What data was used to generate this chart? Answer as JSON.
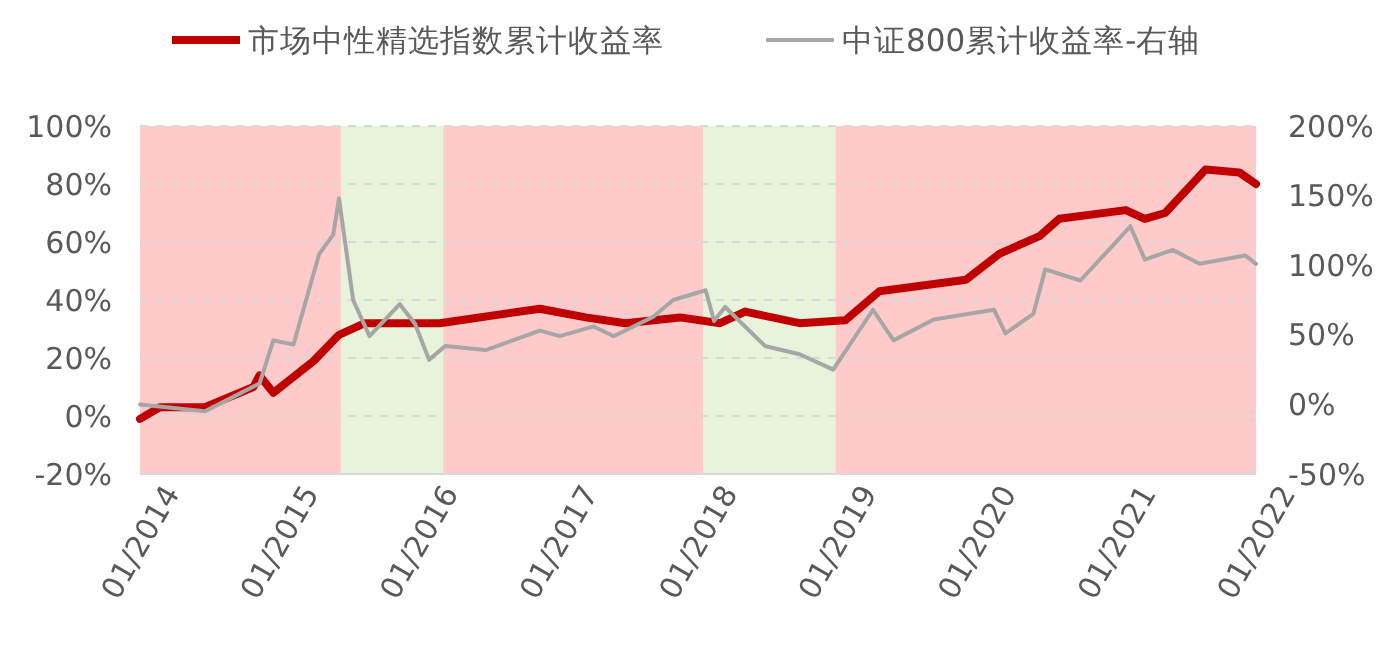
{
  "chart_data": {
    "type": "line",
    "legend": "top",
    "grid": "y",
    "xlim": [
      "2014-01-01",
      "2022-01-01"
    ],
    "xticks": [
      {
        "value": "2014-01-01",
        "label": "01/2014"
      },
      {
        "value": "2015-01-01",
        "label": "01/2015"
      },
      {
        "value": "2016-01-01",
        "label": "01/2016"
      },
      {
        "value": "2017-01-01",
        "label": "01/2017"
      },
      {
        "value": "2018-01-01",
        "label": "01/2018"
      },
      {
        "value": "2019-01-01",
        "label": "01/2019"
      },
      {
        "value": "2020-01-01",
        "label": "01/2020"
      },
      {
        "value": "2021-01-01",
        "label": "01/2021"
      },
      {
        "value": "2022-01-01",
        "label": "01/2022"
      }
    ],
    "ylim": [
      -20,
      100
    ],
    "yticks": [
      {
        "value": -20,
        "label": "-20%"
      },
      {
        "value": 0,
        "label": "0%"
      },
      {
        "value": 20,
        "label": "20%"
      },
      {
        "value": 40,
        "label": "40%"
      },
      {
        "value": 60,
        "label": "60%"
      },
      {
        "value": 80,
        "label": "80%"
      },
      {
        "value": 100,
        "label": "100%"
      }
    ],
    "y2lim": [
      -50,
      200
    ],
    "y2ticks": [
      {
        "value": -50,
        "label": "-50%"
      },
      {
        "value": 0,
        "label": "0%"
      },
      {
        "value": 50,
        "label": "50%"
      },
      {
        "value": 100,
        "label": "100%"
      },
      {
        "value": 150,
        "label": "150%"
      },
      {
        "value": 200,
        "label": "200%"
      }
    ],
    "bands": [
      {
        "axis": "x",
        "from": "2014-01-01",
        "to": "2015-06-12",
        "color": "#ffcaca"
      },
      {
        "axis": "x",
        "from": "2015-06-12",
        "to": "2016-03-05",
        "color": "#e7f3da"
      },
      {
        "axis": "x",
        "from": "2016-03-05",
        "to": "2018-01-15",
        "color": "#ffcaca"
      },
      {
        "axis": "x",
        "from": "2018-01-15",
        "to": "2018-12-27",
        "color": "#e7f3da"
      },
      {
        "axis": "x",
        "from": "2018-12-27",
        "to": "2022-01-01",
        "color": "#ffcaca"
      }
    ],
    "series": [
      {
        "name": "市场中性精选指数累计收益率",
        "color": "#c00000",
        "x": [
          "2014-01-01",
          "2014-02-22",
          "2014-06-20",
          "2014-10-25",
          "2014-11-10",
          "2014-12-16",
          "2015-04-01",
          "2015-06-06",
          "2015-08-13",
          "2016-02-25",
          "2016-11-13",
          "2017-03-13",
          "2017-06-25",
          "2017-11-15",
          "2018-02-28",
          "2018-05-04",
          "2018-09-24",
          "2019-01-22",
          "2019-04-21",
          "2019-12-04",
          "2020-03-01",
          "2020-06-13",
          "2020-08-04",
          "2021-01-25",
          "2021-03-16",
          "2021-05-08",
          "2021-08-22",
          "2021-11-18",
          "2022-01-01"
        ],
        "values": [
          -1,
          3,
          3,
          10,
          14,
          8,
          19,
          28,
          32,
          32,
          37,
          34,
          32,
          34,
          32,
          36,
          32,
          33,
          43,
          47,
          56,
          62,
          68,
          71,
          68,
          70,
          85,
          84,
          80
        ]
      },
      {
        "name": "中证800累计收益率-右轴",
        "color": "#a6a6a6",
        "axis": "y2",
        "x": [
          "2014-01-01",
          "2014-06-20",
          "2014-11-10",
          "2014-12-16",
          "2015-02-07",
          "2015-04-15",
          "2015-05-22",
          "2015-06-06",
          "2015-07-13",
          "2015-08-25",
          "2015-11-12",
          "2015-12-22",
          "2016-01-28",
          "2016-03-10",
          "2016-06-24",
          "2016-11-13",
          "2017-01-04",
          "2017-04-03",
          "2017-05-25",
          "2017-09-06",
          "2017-10-28",
          "2018-01-21",
          "2018-02-12",
          "2018-03-13",
          "2018-06-25",
          "2018-09-24",
          "2018-12-21",
          "2019-04-04",
          "2019-05-28",
          "2019-09-10",
          "2020-02-15",
          "2020-03-16",
          "2020-05-28",
          "2020-06-28",
          "2020-09-28",
          "2020-12-25",
          "2021-02-06",
          "2021-03-16",
          "2021-05-28",
          "2021-08-06",
          "2021-12-04",
          "2022-01-01"
        ],
        "values": [
          0,
          -5,
          15,
          46,
          43,
          108,
          122,
          148,
          75,
          49,
          72,
          58,
          32,
          42,
          39,
          53,
          49,
          56,
          49,
          63,
          75,
          82,
          60,
          70,
          42,
          36,
          25,
          68,
          46,
          61,
          68,
          51,
          65,
          97,
          89,
          115,
          128,
          104,
          111,
          101,
          107,
          101
        ]
      }
    ]
  }
}
